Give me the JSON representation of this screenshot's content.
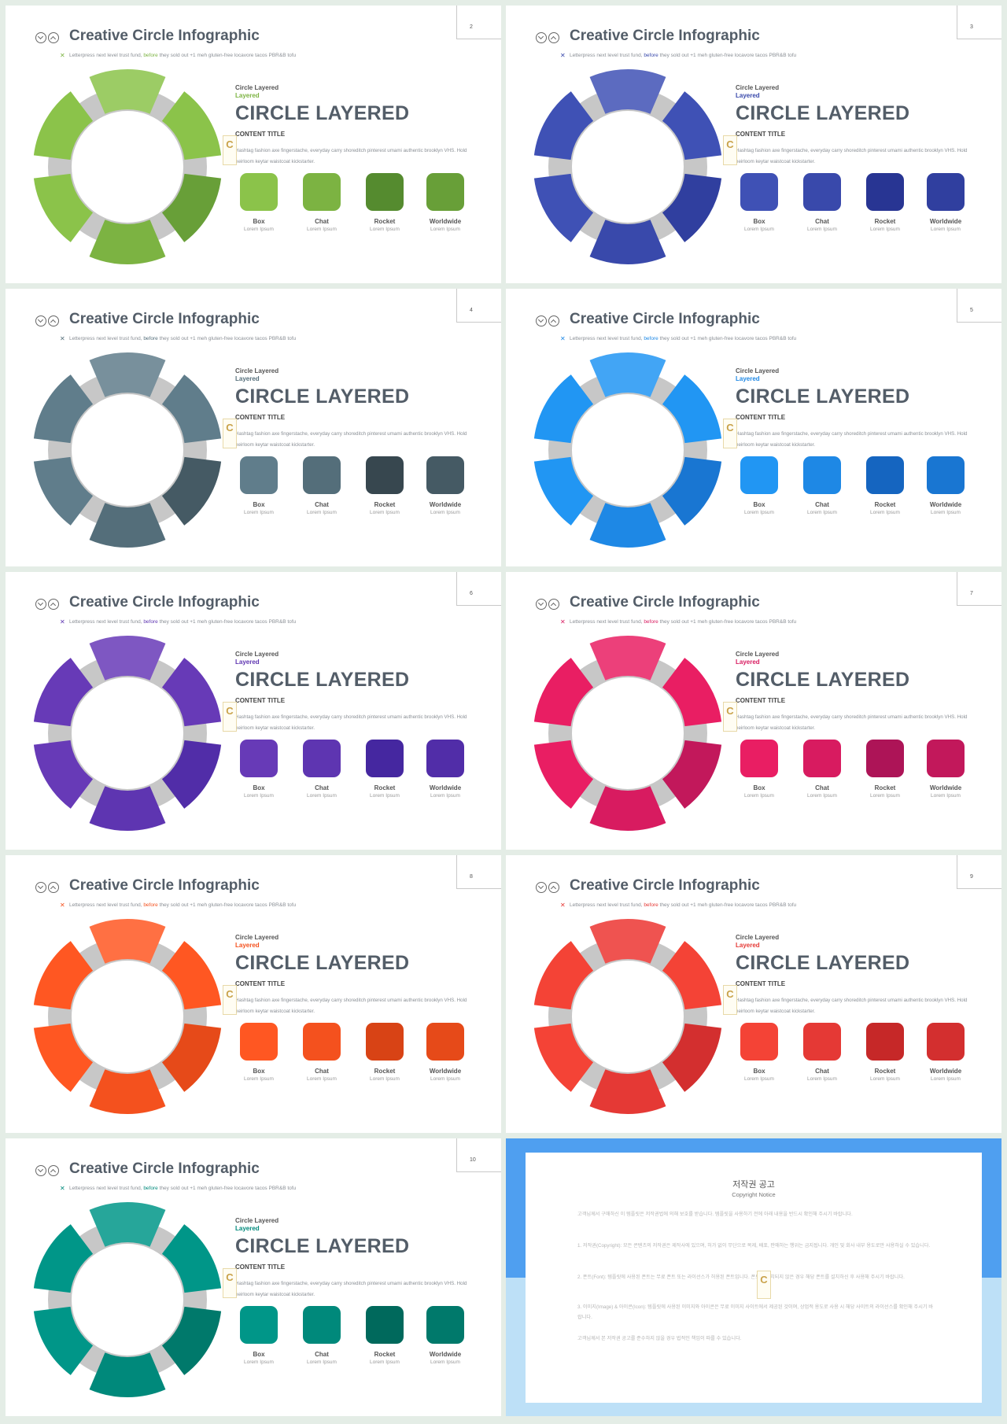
{
  "slide_common": {
    "title": "Creative Circle Infographic",
    "sub_pre": "Letterpress next level trust fund,",
    "sub_hl": "before",
    "sub_post": "they sold out +1 meh gluten-free locavore tacos PBR&B tofu",
    "small_label": "Circle Layered",
    "small_accent": "Layered",
    "heading": "CIRCLE LAYERED",
    "content_title": "CONTENT TITLE",
    "description": "Hashtag fashion axe fingerstache, everyday carry shoreditch pinterest umami authentic brooklyn VHS. Hold heirloom keytar waistcoat kickstarter.",
    "items": [
      {
        "label": "Box",
        "sub": "Lorem Ipsum"
      },
      {
        "label": "Chat",
        "sub": "Lorem Ipsum"
      },
      {
        "label": "Rocket",
        "sub": "Lorem Ipsum"
      },
      {
        "label": "Worldwide",
        "sub": "Lorem Ipsum"
      }
    ],
    "logo_glyph": "C"
  },
  "slides": [
    {
      "page": "2",
      "accent": "#7cb342",
      "segs": [
        "#9ccc65",
        "#8bc34a",
        "#689f38",
        "#7cb342",
        "#8bc34a",
        "#8bc34a"
      ],
      "boxes": [
        "#8bc34a",
        "#7cb342",
        "#558b2f",
        "#689f38"
      ]
    },
    {
      "page": "3",
      "accent": "#3949ab",
      "segs": [
        "#5c6bc0",
        "#3f51b5",
        "#303f9f",
        "#3949ab",
        "#3f51b5",
        "#3f51b5"
      ],
      "boxes": [
        "#3f51b5",
        "#3949ab",
        "#283593",
        "#303f9f"
      ]
    },
    {
      "page": "4",
      "accent": "#546e7a",
      "segs": [
        "#78909c",
        "#607d8b",
        "#455a64",
        "#546e7a",
        "#607d8b",
        "#607d8b"
      ],
      "boxes": [
        "#607d8b",
        "#546e7a",
        "#37474f",
        "#455a64"
      ]
    },
    {
      "page": "5",
      "accent": "#1e88e5",
      "segs": [
        "#42a5f5",
        "#2196f3",
        "#1976d2",
        "#1e88e5",
        "#2196f3",
        "#2196f3"
      ],
      "boxes": [
        "#2196f3",
        "#1e88e5",
        "#1565c0",
        "#1976d2"
      ]
    },
    {
      "page": "6",
      "accent": "#5e35b1",
      "segs": [
        "#7e57c2",
        "#673ab7",
        "#512da8",
        "#5e35b1",
        "#673ab7",
        "#673ab7"
      ],
      "boxes": [
        "#673ab7",
        "#5e35b1",
        "#4527a0",
        "#512da8"
      ]
    },
    {
      "page": "7",
      "accent": "#d81b60",
      "segs": [
        "#ec407a",
        "#e91e63",
        "#c2185b",
        "#d81b60",
        "#e91e63",
        "#e91e63"
      ],
      "boxes": [
        "#e91e63",
        "#d81b60",
        "#ad1457",
        "#c2185b"
      ]
    },
    {
      "page": "8",
      "accent": "#f4511e",
      "segs": [
        "#ff7043",
        "#ff5722",
        "#e64a19",
        "#f4511e",
        "#ff5722",
        "#ff5722"
      ],
      "boxes": [
        "#ff5722",
        "#f4511e",
        "#d84315",
        "#e64a19"
      ]
    },
    {
      "page": "9",
      "accent": "#e53935",
      "segs": [
        "#ef5350",
        "#f44336",
        "#d32f2f",
        "#e53935",
        "#f44336",
        "#f44336"
      ],
      "boxes": [
        "#f44336",
        "#e53935",
        "#c62828",
        "#d32f2f"
      ]
    },
    {
      "page": "10",
      "accent": "#00897b",
      "segs": [
        "#26a69a",
        "#009688",
        "#00796b",
        "#00897b",
        "#009688",
        "#009688"
      ],
      "boxes": [
        "#009688",
        "#00897b",
        "#00695c",
        "#00796b"
      ]
    }
  ],
  "notice": {
    "title": "저작권 공고",
    "subtitle": "Copyright Notice",
    "logo_glyph": "C",
    "paragraphs": [
      "고객님께서 구매하신 이 템플릿은 저작권법에 의해 보호를 받습니다. 템플릿을 사용하기 전에 아래 내용을 반드시 확인해 주시기 바랍니다.",
      "1. 저작권(Copyright): 모든 콘텐츠의 저작권은 제작사에 있으며, 허가 없이 무단으로 복제, 배포, 판매하는 행위는 금지됩니다. 개인 및 회사 내부 용도로만 사용하실 수 있습니다.",
      "2. 폰트(Font): 템플릿에 사용된 폰트는 무료 폰트 또는 라이선스가 허용된 폰트입니다. 폰트가 설치되지 않은 경우 해당 폰트를 설치하신 후 사용해 주시기 바랍니다.",
      "3. 이미지(Image) & 아이콘(Icon): 템플릿에 사용된 이미지와 아이콘은 무료 이미지 사이트에서 제공된 것이며, 상업적 용도로 사용 시 해당 사이트의 라이선스를 확인해 주시기 바랍니다.",
      "고객님께서 본 저작권 공고를 준수하지 않을 경우 법적인 책임이 따를 수 있습니다."
    ]
  }
}
